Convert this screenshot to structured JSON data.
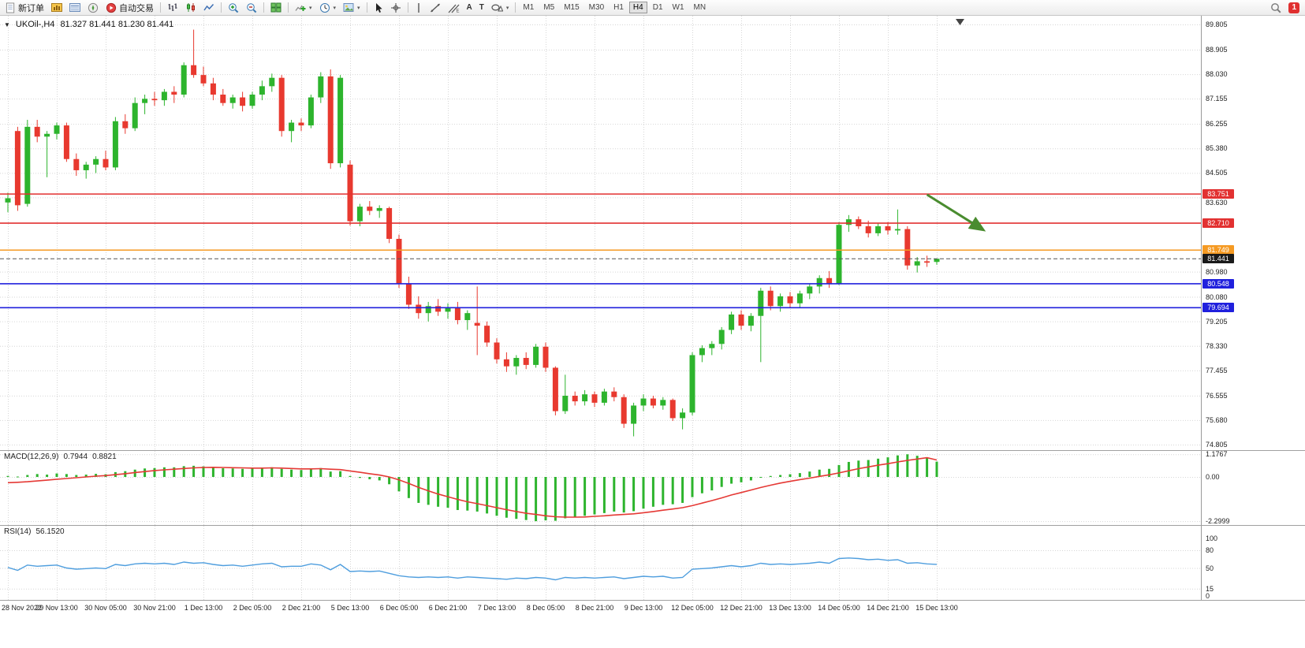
{
  "toolbar": {
    "new_order_label": "新订单",
    "algo_trading_label": "自动交易",
    "timeframes": [
      "M1",
      "M5",
      "M15",
      "M30",
      "H1",
      "H4",
      "D1",
      "W1",
      "MN"
    ],
    "active_timeframe": "H4",
    "notification_count": "1",
    "text_tool_label": "A",
    "label_tool_label": "T"
  },
  "chart": {
    "symbol_period": "UKOil-,H4",
    "ohlc": "81.327 81.441 81.230 81.441"
  },
  "chart_data": {
    "type": "candlestick",
    "symbol": "UKOil-",
    "period": "H4",
    "price_range": {
      "min": 74.805,
      "max": 89.805
    },
    "price_axis_labels": [
      89.805,
      88.905,
      88.03,
      87.155,
      86.255,
      85.38,
      84.505,
      83.63,
      80.98,
      80.08,
      79.205,
      78.33,
      77.455,
      76.555,
      75.68,
      74.805
    ],
    "time_labels": [
      "28 Nov 2022",
      "29 Nov 13:00",
      "30 Nov 05:00",
      "30 Nov 21:00",
      "1 Dec 13:00",
      "2 Dec 05:00",
      "2 Dec 21:00",
      "5 Dec 13:00",
      "6 Dec 05:00",
      "6 Dec 21:00",
      "7 Dec 13:00",
      "8 Dec 05:00",
      "8 Dec 21:00",
      "9 Dec 13:00",
      "12 Dec 05:00",
      "12 Dec 21:00",
      "13 Dec 13:00",
      "14 Dec 05:00",
      "14 Dec 21:00",
      "15 Dec 13:00"
    ],
    "current_price": 81.441,
    "horizontal_lines": [
      {
        "price": 83.751,
        "label": "83.751",
        "color": "#e23131",
        "style": "solid"
      },
      {
        "price": 82.71,
        "label": "82.710",
        "color": "#e23131",
        "style": "solid"
      },
      {
        "price": 81.749,
        "label": "81.749",
        "color": "#f59a23",
        "style": "solid"
      },
      {
        "price": 81.441,
        "label": "81.441",
        "color": "#555555",
        "style": "dash",
        "badge": "#1a1a1a"
      },
      {
        "price": 80.548,
        "label": "80.548",
        "color": "#2020dd",
        "style": "solid"
      },
      {
        "price": 79.694,
        "label": "79.694",
        "color": "#2020dd",
        "style": "solid"
      }
    ],
    "colors": {
      "bull": "#2db42d",
      "bear": "#e8392f",
      "macd_hist": "#2db42d",
      "macd_signal": "#e53935",
      "rsi_line": "#4f9ede"
    },
    "candles": [
      [
        83.45,
        83.8,
        83.1,
        83.6
      ],
      [
        86.0,
        86.15,
        83.15,
        83.35
      ],
      [
        83.4,
        86.4,
        83.3,
        86.15
      ],
      [
        86.15,
        86.4,
        85.6,
        85.8
      ],
      [
        85.8,
        86.0,
        84.35,
        85.9
      ],
      [
        85.9,
        86.3,
        85.7,
        86.2
      ],
      [
        86.2,
        86.3,
        84.9,
        85.0
      ],
      [
        85.0,
        85.2,
        84.4,
        84.6
      ],
      [
        84.6,
        84.9,
        84.3,
        84.8
      ],
      [
        84.8,
        85.1,
        84.5,
        85.0
      ],
      [
        85.0,
        85.3,
        84.6,
        84.7
      ],
      [
        84.7,
        86.5,
        84.6,
        86.35
      ],
      [
        86.35,
        86.6,
        85.9,
        86.1
      ],
      [
        86.1,
        87.2,
        86.0,
        87.0
      ],
      [
        87.0,
        87.3,
        86.6,
        87.15
      ],
      [
        87.15,
        87.4,
        86.9,
        87.1
      ],
      [
        87.1,
        87.5,
        86.9,
        87.4
      ],
      [
        87.4,
        87.6,
        87.0,
        87.3
      ],
      [
        87.3,
        88.45,
        87.2,
        88.35
      ],
      [
        88.35,
        89.62,
        87.9,
        88.0
      ],
      [
        88.0,
        88.3,
        87.6,
        87.7
      ],
      [
        87.7,
        87.9,
        87.1,
        87.3
      ],
      [
        87.3,
        87.5,
        86.9,
        87.0
      ],
      [
        87.0,
        87.3,
        86.8,
        87.2
      ],
      [
        87.2,
        87.4,
        86.7,
        86.9
      ],
      [
        86.9,
        87.4,
        86.8,
        87.3
      ],
      [
        87.3,
        87.8,
        87.1,
        87.6
      ],
      [
        87.6,
        88.05,
        87.4,
        87.9
      ],
      [
        87.9,
        88.0,
        85.8,
        86.0
      ],
      [
        86.0,
        86.4,
        85.6,
        86.3
      ],
      [
        86.3,
        86.45,
        86.0,
        86.2
      ],
      [
        86.2,
        87.3,
        86.1,
        87.2
      ],
      [
        87.2,
        88.1,
        87.0,
        87.95
      ],
      [
        87.95,
        88.2,
        84.65,
        84.85
      ],
      [
        84.85,
        88.0,
        84.7,
        87.9
      ],
      [
        84.8,
        84.95,
        82.62,
        82.78
      ],
      [
        82.78,
        83.4,
        82.6,
        83.3
      ],
      [
        83.3,
        83.5,
        83.0,
        83.15
      ],
      [
        83.15,
        83.35,
        82.9,
        83.25
      ],
      [
        83.25,
        83.3,
        82.0,
        82.15
      ],
      [
        82.15,
        82.3,
        80.4,
        80.55
      ],
      [
        80.55,
        80.8,
        79.65,
        79.8
      ],
      [
        79.8,
        80.1,
        79.3,
        79.5
      ],
      [
        79.5,
        79.9,
        79.2,
        79.75
      ],
      [
        79.75,
        80.0,
        79.4,
        79.55
      ],
      [
        79.55,
        79.85,
        79.3,
        79.7
      ],
      [
        79.7,
        79.9,
        79.1,
        79.25
      ],
      [
        79.25,
        79.6,
        78.9,
        79.5
      ],
      [
        79.15,
        80.45,
        78.0,
        79.05
      ],
      [
        79.05,
        79.2,
        78.3,
        78.45
      ],
      [
        78.45,
        78.6,
        77.7,
        77.85
      ],
      [
        77.85,
        78.1,
        77.4,
        77.6
      ],
      [
        77.6,
        78.0,
        77.3,
        77.9
      ],
      [
        77.9,
        78.1,
        77.5,
        77.65
      ],
      [
        77.65,
        78.4,
        77.55,
        78.3
      ],
      [
        78.3,
        78.45,
        77.4,
        77.55
      ],
      [
        77.55,
        77.6,
        75.85,
        76.0
      ],
      [
        76.0,
        77.3,
        75.9,
        76.55
      ],
      [
        76.55,
        76.7,
        76.2,
        76.35
      ],
      [
        76.35,
        76.75,
        76.2,
        76.6
      ],
      [
        76.6,
        76.7,
        76.15,
        76.3
      ],
      [
        76.3,
        76.8,
        76.2,
        76.7
      ],
      [
        76.7,
        76.85,
        76.35,
        76.5
      ],
      [
        76.5,
        76.6,
        75.4,
        75.55
      ],
      [
        75.55,
        76.3,
        75.1,
        76.2
      ],
      [
        76.2,
        76.6,
        76.0,
        76.45
      ],
      [
        76.45,
        76.55,
        76.1,
        76.2
      ],
      [
        76.2,
        76.5,
        76.05,
        76.4
      ],
      [
        76.4,
        76.45,
        75.65,
        75.75
      ],
      [
        75.75,
        76.1,
        75.35,
        75.95
      ],
      [
        75.95,
        78.1,
        75.85,
        78.0
      ],
      [
        78.0,
        78.35,
        77.75,
        78.25
      ],
      [
        78.25,
        78.5,
        78.0,
        78.4
      ],
      [
        78.4,
        79.0,
        78.2,
        78.9
      ],
      [
        78.9,
        79.55,
        78.75,
        79.45
      ],
      [
        79.45,
        79.6,
        78.9,
        79.05
      ],
      [
        79.05,
        79.5,
        78.85,
        79.4
      ],
      [
        79.4,
        80.4,
        77.75,
        80.3
      ],
      [
        80.3,
        80.45,
        79.6,
        79.75
      ],
      [
        79.75,
        80.2,
        79.55,
        80.1
      ],
      [
        80.1,
        80.25,
        79.7,
        79.85
      ],
      [
        79.85,
        80.3,
        79.7,
        80.2
      ],
      [
        80.2,
        80.55,
        80.0,
        80.45
      ],
      [
        80.45,
        80.85,
        80.2,
        80.75
      ],
      [
        80.75,
        81.0,
        80.4,
        80.55
      ],
      [
        80.55,
        82.75,
        80.5,
        82.65
      ],
      [
        82.65,
        83.0,
        82.4,
        82.85
      ],
      [
        82.85,
        82.95,
        82.5,
        82.6
      ],
      [
        82.6,
        82.8,
        82.2,
        82.35
      ],
      [
        82.35,
        82.7,
        82.25,
        82.6
      ],
      [
        82.6,
        82.75,
        82.3,
        82.45
      ],
      [
        82.45,
        83.2,
        82.3,
        82.5
      ],
      [
        82.5,
        82.6,
        81.05,
        81.2
      ],
      [
        81.2,
        81.5,
        80.95,
        81.35
      ],
      [
        81.35,
        81.55,
        81.15,
        81.3
      ],
      [
        81.327,
        81.441,
        81.23,
        81.441
      ]
    ],
    "arrow_annotation": {
      "from_index": 94,
      "from_price": 83.73,
      "to_index": 99.4,
      "to_price": 82.55,
      "color": "#4a8c2f"
    },
    "indicators": {
      "macd": {
        "name": "MACD(12,26,9)",
        "value": "0.7944",
        "signal_value": "0.8821",
        "axis_labels": [
          "1.1767",
          "0.00",
          "-2.2999"
        ],
        "axis_values": [
          1.1767,
          0,
          -2.2999
        ],
        "histogram": [
          0.05,
          0.02,
          0.1,
          0.15,
          0.12,
          0.18,
          0.15,
          0.1,
          0.12,
          0.16,
          0.14,
          0.25,
          0.3,
          0.38,
          0.44,
          0.46,
          0.5,
          0.5,
          0.56,
          0.58,
          0.55,
          0.5,
          0.45,
          0.44,
          0.42,
          0.43,
          0.46,
          0.5,
          0.42,
          0.38,
          0.36,
          0.42,
          0.46,
          0.28,
          0.3,
          0.05,
          -0.05,
          -0.12,
          -0.18,
          -0.38,
          -0.75,
          -1.1,
          -1.35,
          -1.45,
          -1.55,
          -1.6,
          -1.72,
          -1.75,
          -1.8,
          -1.9,
          -2.02,
          -2.12,
          -2.18,
          -2.24,
          -2.2999,
          -2.26,
          -2.28,
          -2.15,
          -2.1,
          -2.02,
          -1.95,
          -1.88,
          -1.8,
          -1.85,
          -1.78,
          -1.65,
          -1.55,
          -1.45,
          -1.42,
          -1.35,
          -1.05,
          -0.85,
          -0.7,
          -0.52,
          -0.35,
          -0.28,
          -0.18,
          -0.02,
          0.05,
          0.1,
          0.14,
          0.2,
          0.28,
          0.38,
          0.42,
          0.62,
          0.78,
          0.85,
          0.88,
          0.95,
          1.02,
          1.12,
          1.1767,
          1.1,
          0.98,
          0.7944
        ],
        "signal": [
          -0.3,
          -0.28,
          -0.25,
          -0.21,
          -0.17,
          -0.12,
          -0.08,
          -0.04,
          0.0,
          0.04,
          0.07,
          0.12,
          0.17,
          0.23,
          0.28,
          0.33,
          0.37,
          0.4,
          0.44,
          0.47,
          0.49,
          0.5,
          0.49,
          0.48,
          0.47,
          0.46,
          0.46,
          0.47,
          0.46,
          0.44,
          0.42,
          0.42,
          0.43,
          0.4,
          0.38,
          0.31,
          0.24,
          0.17,
          0.1,
          0.0,
          -0.15,
          -0.34,
          -0.54,
          -0.72,
          -0.89,
          -1.03,
          -1.17,
          -1.29,
          -1.39,
          -1.49,
          -1.6,
          -1.7,
          -1.8,
          -1.89,
          -1.95,
          -2.02,
          -2.07,
          -2.09,
          -2.09,
          -2.08,
          -2.05,
          -2.02,
          -1.98,
          -1.95,
          -1.92,
          -1.86,
          -1.8,
          -1.73,
          -1.67,
          -1.6,
          -1.49,
          -1.36,
          -1.23,
          -1.09,
          -0.94,
          -0.81,
          -0.68,
          -0.55,
          -0.43,
          -0.32,
          -0.23,
          -0.14,
          -0.06,
          0.03,
          0.11,
          0.21,
          0.32,
          0.43,
          0.52,
          0.61,
          0.69,
          0.78,
          0.86,
          0.93,
          1.0,
          0.8821
        ]
      },
      "rsi": {
        "name": "RSI(14)",
        "value": "56.1520",
        "levels": [
          100,
          80,
          50,
          15,
          0
        ],
        "dashed_levels": [
          80,
          50,
          15
        ],
        "series": [
          51,
          46,
          55,
          53,
          54,
          55,
          50,
          48,
          49,
          50,
          49,
          56,
          54,
          57,
          58,
          57,
          58,
          56,
          60,
          58,
          59,
          56,
          54,
          55,
          53,
          55,
          57,
          58,
          52,
          53,
          53,
          57,
          55,
          47,
          56,
          44,
          45,
          44,
          45,
          41,
          37,
          35,
          34,
          35,
          34,
          35,
          33,
          35,
          34,
          33,
          32,
          31,
          33,
          32,
          34,
          33,
          30,
          34,
          33,
          34,
          33,
          34,
          35,
          32,
          34,
          36,
          35,
          36,
          33,
          34,
          48,
          49,
          50,
          52,
          54,
          52,
          54,
          58,
          56,
          57,
          56,
          57,
          58,
          60,
          58,
          66,
          67,
          66,
          64,
          65,
          63,
          64,
          58,
          59,
          57,
          56.152
        ]
      }
    }
  }
}
